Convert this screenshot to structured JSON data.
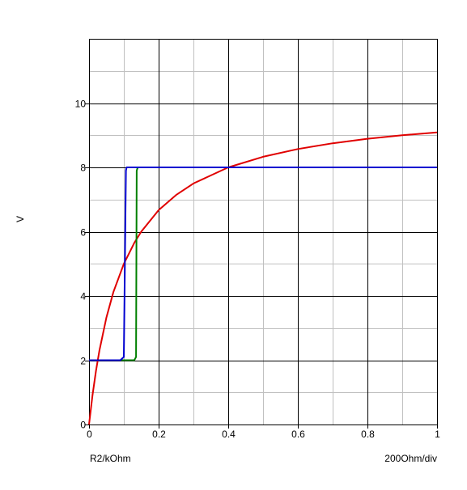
{
  "chart_data": {
    "type": "line",
    "xlabel": "R2/kOhm",
    "ylabel": "V",
    "scale_note": "200Ohm/div",
    "xlim": [
      0,
      1
    ],
    "ylim": [
      0,
      12
    ],
    "x_ticks": [
      0,
      0.2,
      0.4,
      0.6,
      0.8,
      1
    ],
    "x_tick_labels": [
      "0",
      "0.2",
      "0.4",
      "0.6",
      "0.8",
      "1"
    ],
    "y_ticks": [
      0,
      2,
      4,
      6,
      8,
      10
    ],
    "y_tick_labels": [
      "0",
      "2",
      "4",
      "6",
      "8",
      "10"
    ],
    "grid": true,
    "minor_grid": true,
    "series": [
      {
        "color": "#e00000",
        "x": [
          0,
          0.01,
          0.02,
          0.03,
          0.05,
          0.07,
          0.1,
          0.13,
          0.15,
          0.2,
          0.25,
          0.3,
          0.4,
          0.5,
          0.6,
          0.7,
          0.8,
          0.9,
          1.0
        ],
        "y": [
          0,
          0.91,
          1.67,
          2.31,
          3.33,
          4.12,
          5.0,
          5.65,
          6.0,
          6.67,
          7.14,
          7.5,
          8.0,
          8.33,
          8.57,
          8.75,
          8.89,
          9.0,
          9.09
        ]
      },
      {
        "color": "#008000",
        "x": [
          0,
          0.13,
          0.135,
          0.137,
          0.14,
          0.2,
          0.4,
          0.6,
          0.8,
          1.0
        ],
        "y": [
          2.0,
          2.0,
          2.1,
          7.9,
          8.0,
          8.0,
          8.0,
          8.0,
          8.0,
          8.0
        ]
      },
      {
        "color": "#0000d0",
        "x": [
          0,
          0.09,
          0.1,
          0.106,
          0.108,
          0.2,
          0.4,
          0.6,
          0.8,
          1.0
        ],
        "y": [
          2.0,
          2.0,
          2.1,
          7.9,
          8.0,
          8.0,
          8.0,
          8.0,
          8.0,
          8.0
        ]
      }
    ]
  }
}
